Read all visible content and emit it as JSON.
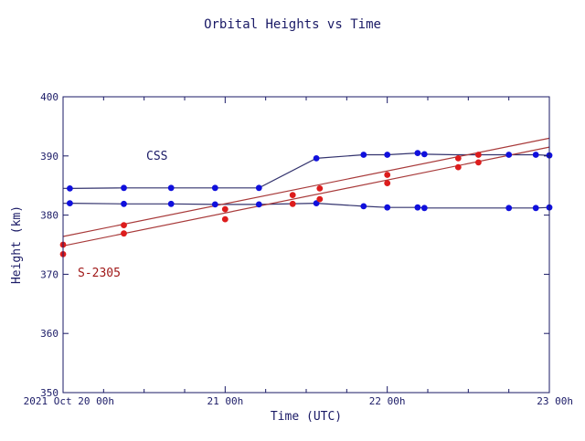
{
  "chart_data": {
    "type": "line",
    "title": "Orbital Heights vs Time",
    "xlabel": "Time (UTC)",
    "ylabel": "Height (km)",
    "xlim": [
      0,
      72
    ],
    "ylim": [
      350,
      400
    ],
    "x_unit": "hours since 2021 Oct 20 00h",
    "x_ticks": [
      {
        "x": 0,
        "label": "2021 Oct 20  00h"
      },
      {
        "x": 24,
        "label": "21  00h"
      },
      {
        "x": 48,
        "label": "22  00h"
      },
      {
        "x": 72,
        "label": "23  00h"
      }
    ],
    "y_ticks": [
      350,
      360,
      370,
      380,
      390,
      400
    ],
    "grid": false,
    "annotations": {
      "css": "CSS",
      "s2305": "S-2305"
    },
    "colors": {
      "css": "#1010dd",
      "s2305": "#dd1c1c",
      "css_line": "#33336e",
      "s2305_line": "#a83a3a",
      "axis": "#1a1a66"
    },
    "series": [
      {
        "name": "CSS",
        "color": "#1010dd",
        "line": [
          [
            -6,
            384.6
          ],
          [
            1,
            384.5
          ],
          [
            9,
            384.6
          ],
          [
            16,
            384.6
          ],
          [
            22.5,
            384.6
          ],
          [
            29,
            384.6
          ],
          [
            37.5,
            389.6
          ],
          [
            44.5,
            390.2
          ],
          [
            48,
            390.2
          ],
          [
            52.5,
            390.5
          ],
          [
            53.5,
            390.3
          ],
          [
            58,
            390.2
          ],
          [
            62,
            390.2
          ],
          [
            66,
            390.2
          ],
          [
            70,
            390.2
          ],
          [
            72,
            390.1
          ]
        ],
        "points": [
          [
            1,
            384.5
          ],
          [
            9,
            384.6
          ],
          [
            16,
            384.6
          ],
          [
            22.5,
            384.6
          ],
          [
            29,
            384.6
          ],
          [
            37.5,
            389.6
          ],
          [
            44.5,
            390.2
          ],
          [
            48,
            390.2
          ],
          [
            52.5,
            390.5
          ],
          [
            53.5,
            390.3
          ],
          [
            66,
            390.2
          ],
          [
            70,
            390.2
          ],
          [
            72,
            390.1
          ]
        ]
      },
      {
        "name": "CSS",
        "color": "#1010dd",
        "line": [
          [
            -6,
            381.9
          ],
          [
            1,
            382.0
          ],
          [
            9,
            381.9
          ],
          [
            16,
            381.9
          ],
          [
            22.5,
            381.8
          ],
          [
            29,
            381.8
          ],
          [
            37.5,
            382.0
          ],
          [
            44.5,
            381.5
          ],
          [
            48,
            381.3
          ],
          [
            52.5,
            381.3
          ],
          [
            53.5,
            381.2
          ],
          [
            58,
            381.2
          ],
          [
            66,
            381.2
          ],
          [
            70,
            381.2
          ],
          [
            72,
            381.3
          ]
        ],
        "points": [
          [
            1,
            382.0
          ],
          [
            9,
            381.9
          ],
          [
            16,
            381.9
          ],
          [
            22.5,
            381.8
          ],
          [
            29,
            381.8
          ],
          [
            37.5,
            382.0
          ],
          [
            44.5,
            381.5
          ],
          [
            48,
            381.3
          ],
          [
            52.5,
            381.3
          ],
          [
            53.5,
            381.2
          ],
          [
            66,
            381.2
          ],
          [
            70,
            381.2
          ],
          [
            72,
            381.3
          ]
        ]
      },
      {
        "name": "S-2305",
        "color": "#dd1c1c",
        "line": [
          [
            -6,
            375.0
          ],
          [
            72,
            393.0
          ]
        ],
        "points": [
          [
            -6,
            375.0
          ],
          [
            9,
            378.3
          ],
          [
            24,
            381.0
          ],
          [
            34,
            383.4
          ],
          [
            38,
            384.5
          ],
          [
            48,
            386.8
          ],
          [
            58.5,
            389.6
          ],
          [
            61.5,
            390.2
          ]
        ]
      },
      {
        "name": "S-2305",
        "color": "#dd1c1c",
        "line": [
          [
            -6,
            373.4
          ],
          [
            72,
            391.5
          ]
        ],
        "points": [
          [
            -6,
            373.4
          ],
          [
            9,
            376.9
          ],
          [
            24,
            379.3
          ],
          [
            34,
            381.9
          ],
          [
            38,
            382.7
          ],
          [
            48,
            385.4
          ],
          [
            58.5,
            388.1
          ],
          [
            61.5,
            388.9
          ]
        ]
      }
    ]
  }
}
